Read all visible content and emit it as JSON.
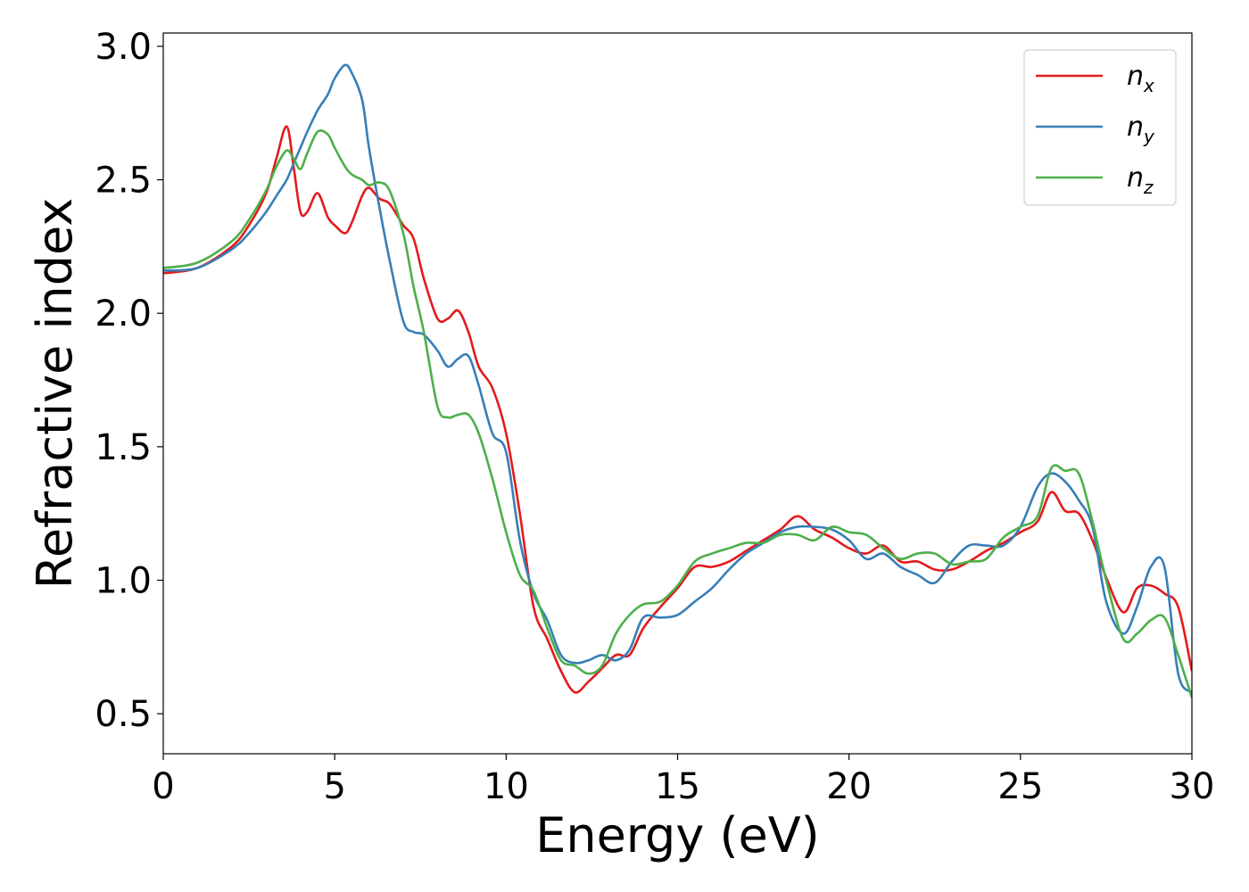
{
  "chart_data": {
    "type": "line",
    "xlabel": "Energy (eV)",
    "ylabel": "Refractive index",
    "xlim": [
      0,
      30
    ],
    "ylim": [
      0.35,
      3.05
    ],
    "xticks": [
      0,
      5,
      10,
      15,
      20,
      25,
      30
    ],
    "xtick_labels": [
      "0",
      "5",
      "10",
      "15",
      "20",
      "25",
      "30"
    ],
    "yticks": [
      0.5,
      1.0,
      1.5,
      2.0,
      2.5,
      3.0
    ],
    "ytick_labels": [
      "0.5",
      "1.0",
      "1.5",
      "2.0",
      "2.5",
      "3.0"
    ],
    "grid": false,
    "legend_position": "top-right",
    "series": [
      {
        "name": "n",
        "subscript": "x",
        "color": "#e41a1c",
        "x": [
          0,
          1,
          2,
          2.5,
          3,
          3.3,
          3.6,
          3.8,
          4.0,
          4.2,
          4.5,
          4.8,
          5.0,
          5.3,
          5.5,
          5.8,
          6.0,
          6.3,
          6.6,
          7.0,
          7.3,
          7.6,
          8.0,
          8.3,
          8.6,
          8.9,
          9.2,
          9.6,
          10.0,
          10.4,
          10.8,
          11.2,
          11.6,
          12.0,
          12.4,
          12.8,
          13.2,
          13.6,
          14.0,
          14.5,
          15.0,
          15.5,
          16.0,
          16.5,
          17.0,
          17.5,
          18.0,
          18.5,
          19.0,
          19.5,
          20.0,
          20.5,
          21.0,
          21.5,
          22.0,
          22.5,
          23.0,
          23.5,
          24.0,
          24.5,
          25.0,
          25.5,
          25.9,
          26.3,
          26.7,
          27.1,
          27.5,
          28.0,
          28.4,
          28.8,
          29.2,
          29.6,
          30.0
        ],
        "values": [
          2.15,
          2.17,
          2.25,
          2.33,
          2.45,
          2.58,
          2.7,
          2.55,
          2.38,
          2.38,
          2.45,
          2.36,
          2.33,
          2.3,
          2.34,
          2.44,
          2.47,
          2.43,
          2.41,
          2.33,
          2.28,
          2.13,
          1.98,
          1.98,
          2.01,
          1.93,
          1.8,
          1.72,
          1.55,
          1.25,
          0.9,
          0.78,
          0.66,
          0.58,
          0.62,
          0.67,
          0.72,
          0.72,
          0.82,
          0.9,
          0.97,
          1.05,
          1.05,
          1.07,
          1.11,
          1.15,
          1.19,
          1.24,
          1.19,
          1.16,
          1.12,
          1.1,
          1.13,
          1.07,
          1.07,
          1.04,
          1.04,
          1.07,
          1.11,
          1.14,
          1.18,
          1.22,
          1.33,
          1.26,
          1.25,
          1.15,
          1.01,
          0.88,
          0.97,
          0.98,
          0.95,
          0.9,
          0.66
        ]
      },
      {
        "name": "n",
        "subscript": "y",
        "color": "#377eb8",
        "x": [
          0,
          1,
          2,
          2.5,
          3,
          3.3,
          3.6,
          3.8,
          4.0,
          4.2,
          4.5,
          4.8,
          5.0,
          5.3,
          5.5,
          5.8,
          6.0,
          6.3,
          6.6,
          7.0,
          7.3,
          7.6,
          8.0,
          8.3,
          8.6,
          8.9,
          9.2,
          9.6,
          10.0,
          10.4,
          10.8,
          11.2,
          11.6,
          12.0,
          12.4,
          12.8,
          13.2,
          13.6,
          14.0,
          14.5,
          15.0,
          15.5,
          16.0,
          16.5,
          17.0,
          17.5,
          18.0,
          18.5,
          19.0,
          19.5,
          20.0,
          20.5,
          21.0,
          21.5,
          22.0,
          22.5,
          23.0,
          23.5,
          24.0,
          24.5,
          25.0,
          25.5,
          25.9,
          26.3,
          26.7,
          27.1,
          27.5,
          28.0,
          28.4,
          28.8,
          29.2,
          29.6,
          30.0
        ],
        "values": [
          2.16,
          2.17,
          2.24,
          2.3,
          2.38,
          2.44,
          2.5,
          2.56,
          2.62,
          2.68,
          2.76,
          2.82,
          2.88,
          2.93,
          2.9,
          2.8,
          2.62,
          2.4,
          2.2,
          1.97,
          1.93,
          1.92,
          1.86,
          1.8,
          1.83,
          1.84,
          1.73,
          1.55,
          1.48,
          1.15,
          0.95,
          0.85,
          0.72,
          0.69,
          0.7,
          0.72,
          0.7,
          0.74,
          0.86,
          0.86,
          0.87,
          0.92,
          0.97,
          1.04,
          1.1,
          1.14,
          1.18,
          1.2,
          1.2,
          1.19,
          1.15,
          1.08,
          1.1,
          1.05,
          1.02,
          0.99,
          1.07,
          1.13,
          1.13,
          1.13,
          1.2,
          1.35,
          1.4,
          1.37,
          1.3,
          1.2,
          0.92,
          0.8,
          0.9,
          1.05,
          1.05,
          0.65,
          0.58
        ]
      },
      {
        "name": "n",
        "subscript": "z",
        "color": "#4daf4a",
        "x": [
          0,
          1,
          2,
          2.5,
          3,
          3.3,
          3.6,
          3.8,
          4.0,
          4.2,
          4.5,
          4.8,
          5.0,
          5.3,
          5.5,
          5.8,
          6.0,
          6.3,
          6.6,
          7.0,
          7.3,
          7.6,
          8.0,
          8.3,
          8.6,
          8.9,
          9.2,
          9.6,
          10.0,
          10.4,
          10.8,
          11.2,
          11.6,
          12.0,
          12.4,
          12.8,
          13.2,
          13.6,
          14.0,
          14.5,
          15.0,
          15.5,
          16.0,
          16.5,
          17.0,
          17.5,
          18.0,
          18.5,
          19.0,
          19.5,
          20.0,
          20.5,
          21.0,
          21.5,
          22.0,
          22.5,
          23.0,
          23.5,
          24.0,
          24.5,
          25.0,
          25.5,
          25.9,
          26.3,
          26.7,
          27.1,
          27.5,
          28.0,
          28.4,
          28.8,
          29.2,
          29.6,
          30.0
        ],
        "values": [
          2.17,
          2.19,
          2.27,
          2.35,
          2.46,
          2.55,
          2.61,
          2.58,
          2.54,
          2.6,
          2.68,
          2.67,
          2.62,
          2.55,
          2.52,
          2.5,
          2.48,
          2.49,
          2.46,
          2.3,
          2.1,
          1.93,
          1.65,
          1.61,
          1.62,
          1.62,
          1.55,
          1.38,
          1.18,
          1.02,
          0.96,
          0.82,
          0.7,
          0.68,
          0.65,
          0.68,
          0.8,
          0.87,
          0.91,
          0.92,
          0.98,
          1.07,
          1.1,
          1.12,
          1.14,
          1.14,
          1.17,
          1.17,
          1.15,
          1.2,
          1.18,
          1.17,
          1.12,
          1.08,
          1.1,
          1.1,
          1.06,
          1.07,
          1.08,
          1.16,
          1.2,
          1.24,
          1.42,
          1.41,
          1.4,
          1.22,
          1.0,
          0.78,
          0.8,
          0.85,
          0.86,
          0.72,
          0.56
        ]
      }
    ]
  }
}
